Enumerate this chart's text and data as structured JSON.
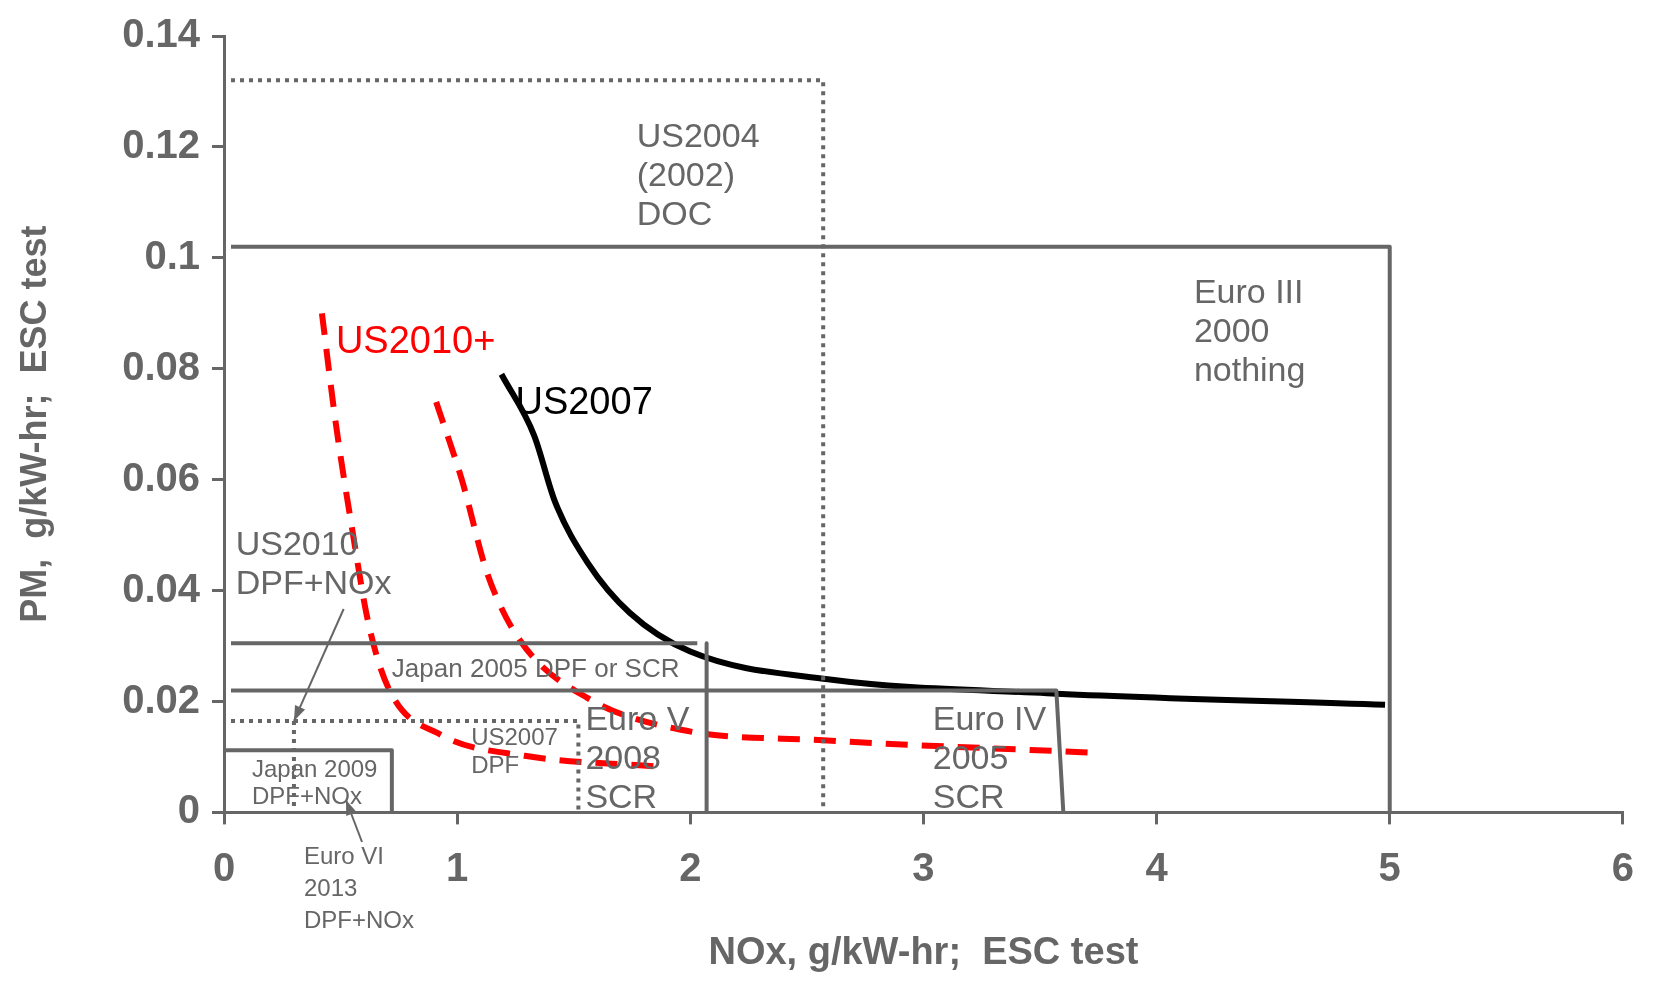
{
  "chart_data": {
    "type": "line",
    "xlabel": "NOx, g/kW-hr;  ESC test",
    "ylabel": "PM,  g/kW-hr;  ESC test",
    "xlim": [
      0,
      6
    ],
    "xticks": [
      0,
      1,
      2,
      3,
      4,
      5,
      6
    ],
    "ylim": [
      0,
      0.14
    ],
    "yticks": [
      0,
      0.02,
      0.04,
      0.06,
      0.08,
      0.1,
      0.12,
      0.14
    ],
    "grid": false,
    "legend": false,
    "marker": "none",
    "series": [
      {
        "color": "#666666",
        "line_style": "dotted",
        "x": [
          0.03,
          2.57,
          2.57
        ],
        "values": [
          0.132,
          0.132,
          0
        ]
      },
      {
        "color": "#666666",
        "line_style": "solid",
        "x": [
          0.03,
          5.0,
          5.0
        ],
        "values": [
          0.102,
          0.102,
          0
        ]
      },
      {
        "color": "#666666",
        "line_style": "solid",
        "x": [
          0.03,
          2.03
        ],
        "values": [
          0.0305,
          0.0305
        ]
      },
      {
        "color": "#666666",
        "line_style": "solid",
        "x": [
          2.07,
          2.07
        ],
        "values": [
          0.0305,
          0
        ]
      },
      {
        "color": "#666666",
        "line_style": "solid",
        "x": [
          0.03,
          3.57,
          3.6
        ],
        "values": [
          0.022,
          0.022,
          0
        ]
      },
      {
        "color": "#666666",
        "line_style": "dotted",
        "x": [
          0.03,
          1.52,
          1.52
        ],
        "values": [
          0.0165,
          0.0165,
          0
        ]
      },
      {
        "color": "#666666",
        "line_style": "dotted",
        "x": [
          0.3,
          0.3
        ],
        "values": [
          0.0165,
          0
        ]
      },
      {
        "color": "#666666",
        "line_style": "solid",
        "x": [
          0,
          0.72,
          0.72
        ],
        "values": [
          0.0112,
          0.0112,
          0
        ]
      },
      {
        "name": "US2010+",
        "color": "#ff0000",
        "line_style": "dashed",
        "x": [
          0.42,
          0.48,
          0.55,
          0.62,
          0.71,
          0.93,
          1.29,
          1.85
        ],
        "values": [
          0.09,
          0.07,
          0.051,
          0.034,
          0.022,
          0.014,
          0.0102,
          0.0083
        ]
      },
      {
        "color": "#ff0000",
        "line_style": "dashed",
        "x": [
          0.91,
          1.02,
          1.13,
          1.27,
          1.56,
          1.96,
          2.57,
          3.71
        ],
        "values": [
          0.074,
          0.06,
          0.043,
          0.031,
          0.0206,
          0.0149,
          0.013,
          0.0108
        ]
      },
      {
        "name": "US2007",
        "color": "#000000",
        "line_style": "solid",
        "x": [
          1.19,
          1.33,
          1.42,
          1.56,
          1.74,
          2.0,
          2.59,
          3.53,
          4.98
        ],
        "values": [
          0.079,
          0.068,
          0.056,
          0.045,
          0.036,
          0.029,
          0.024,
          0.0215,
          0.0194
        ]
      }
    ],
    "annotations": [
      "US2004\n(2002)\nDOC",
      "Euro III\n2000\nnothing",
      {
        "text": "US2010\nDPF+NOx",
        "x": 0.3,
        "y": 0.0165
      },
      "Japan 2005 DPF or SCR",
      "Euro V\n2008\nSCR",
      "Euro IV\n2005\nSCR",
      "US2007\nDPF",
      "Japan 2009\nDPF+NOx",
      "Euro VI\n2013\nDPF+NOx"
    ]
  }
}
